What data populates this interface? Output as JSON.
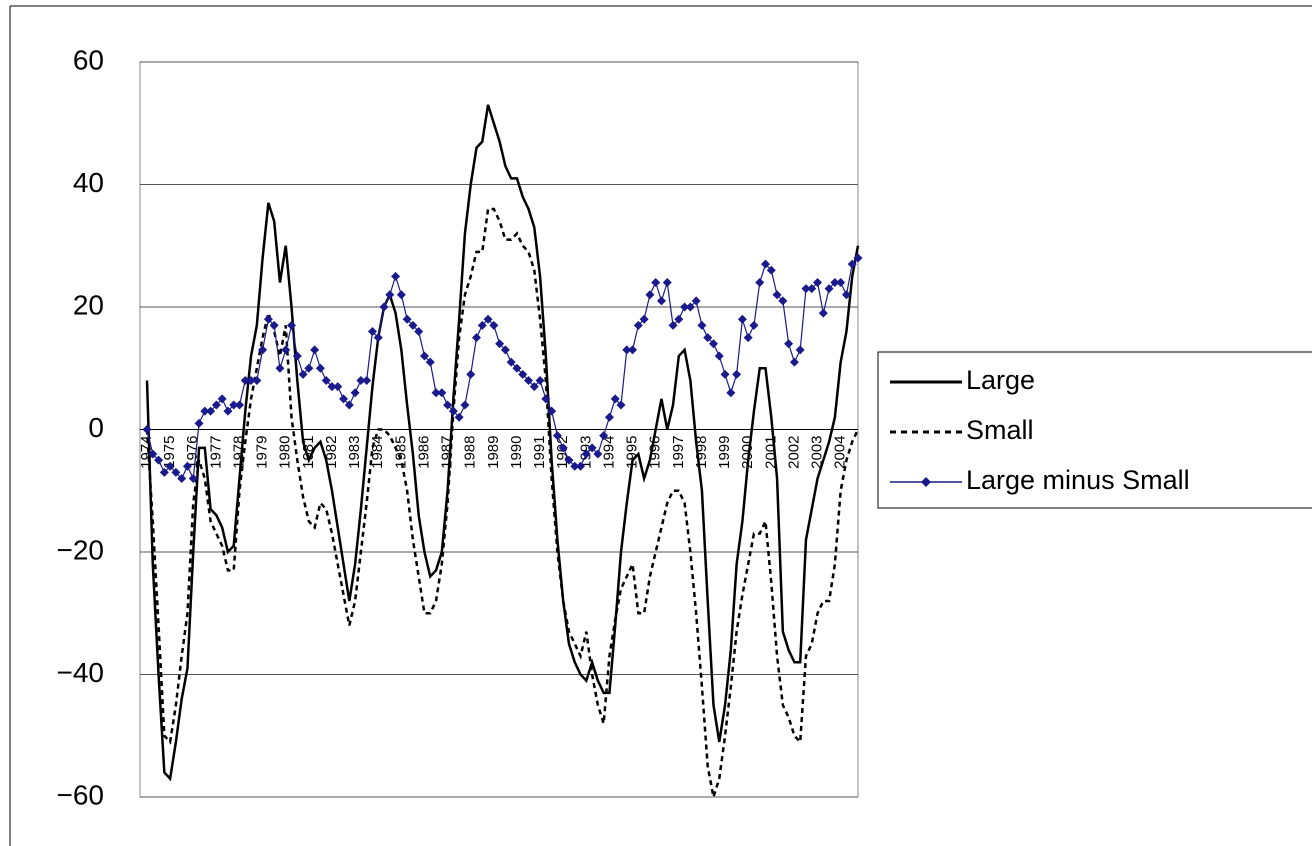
{
  "chart_data": {
    "type": "line",
    "categories": [
      "1974",
      null,
      null,
      null,
      "1975",
      null,
      null,
      null,
      "1976",
      null,
      null,
      null,
      "1977",
      null,
      null,
      null,
      "1978",
      null,
      null,
      null,
      "1979",
      null,
      null,
      null,
      "1980",
      null,
      null,
      null,
      "1981",
      null,
      null,
      null,
      "1982",
      null,
      null,
      null,
      "1983",
      null,
      null,
      null,
      "1984",
      null,
      null,
      null,
      "1985",
      null,
      null,
      null,
      "1986",
      null,
      null,
      null,
      "1987",
      null,
      null,
      null,
      "1988",
      null,
      null,
      null,
      "1989",
      null,
      null,
      null,
      "1990",
      null,
      null,
      null,
      "1991",
      null,
      null,
      null,
      "1992",
      null,
      null,
      null,
      "1993",
      null,
      null,
      null,
      "1994",
      null,
      null,
      null,
      "1995",
      null,
      null,
      null,
      "1996",
      null,
      null,
      null,
      "1997",
      null,
      null,
      null,
      "1998",
      null,
      null,
      null,
      "1999",
      null,
      null,
      null,
      "2000",
      null,
      null,
      null,
      "2001",
      null,
      null,
      null,
      "2002",
      null,
      null,
      null,
      "2003",
      null,
      null,
      null,
      "2004",
      null,
      null,
      null
    ],
    "series": [
      {
        "name": "Large",
        "color": "#000000",
        "line_style": "solid",
        "marker": "none",
        "values": [
          8,
          -22,
          -40,
          -56,
          -57,
          -51,
          -44,
          -39,
          -20,
          -3,
          -3,
          -13,
          -14,
          -16,
          -20,
          -19,
          -8,
          3,
          12,
          17,
          28,
          37,
          34,
          24,
          30,
          20,
          8,
          -2,
          -5,
          -3,
          -2,
          -5,
          -10,
          -16,
          -22,
          -28,
          -22,
          -13,
          -3,
          7,
          15,
          20,
          22,
          19,
          13,
          4,
          -4,
          -14,
          -20,
          -24,
          -23,
          -20,
          -10,
          5,
          18,
          32,
          40,
          46,
          47,
          53,
          50,
          47,
          43,
          41,
          41,
          38,
          36,
          33,
          25,
          12,
          -5,
          -18,
          -28,
          -35,
          -38,
          -40,
          -41,
          -38,
          -41,
          -43,
          -43,
          -32,
          -20,
          -12,
          -5,
          -4,
          -8,
          -5,
          0,
          5,
          0,
          4,
          12,
          13,
          8,
          -2,
          -10,
          -28,
          -45,
          -51,
          -45,
          -36,
          -22,
          -15,
          -5,
          3,
          10,
          10,
          2,
          -8,
          -33,
          -36,
          -38,
          -38,
          -18,
          -13,
          -8,
          -5,
          -2,
          2,
          11,
          16,
          25,
          30
        ]
      },
      {
        "name": "Small",
        "color": "#000000",
        "line_style": "dashed",
        "marker": "none",
        "values": [
          0,
          -15,
          -32,
          -50,
          -51,
          -45,
          -37,
          -30,
          -12,
          -5,
          -8,
          -15,
          -17,
          -19,
          -23,
          -23,
          -10,
          -2,
          5,
          10,
          15,
          19,
          16,
          12,
          17,
          2,
          -5,
          -11,
          -15,
          -16,
          -12,
          -13,
          -17,
          -22,
          -27,
          -32,
          -28,
          -20,
          -12,
          -3,
          0,
          0,
          -1,
          -3,
          -5,
          -10,
          -18,
          -24,
          -30,
          -30,
          -28,
          -22,
          -12,
          3,
          15,
          22,
          25,
          29,
          29,
          36,
          36,
          34,
          31,
          31,
          32,
          30,
          29,
          26,
          18,
          8,
          -8,
          -20,
          -28,
          -33,
          -35,
          -37,
          -33,
          -40,
          -45,
          -48,
          -37,
          -31,
          -26,
          -24,
          -22,
          -30,
          -30,
          -24,
          -20,
          -16,
          -12,
          -10,
          -10,
          -12,
          -20,
          -30,
          -42,
          -55,
          -60,
          -57,
          -50,
          -42,
          -33,
          -27,
          -22,
          -17,
          -17,
          -15,
          -25,
          -37,
          -45,
          -47,
          -50,
          -51,
          -37,
          -35,
          -30,
          -28,
          -28,
          -22,
          -10,
          -5,
          -2,
          0
        ]
      },
      {
        "name": "Large minus Small",
        "color": "#1a1a8c",
        "line_style": "solid",
        "marker": "diamond",
        "values": [
          0,
          -4,
          -5,
          -7,
          -6,
          -7,
          -8,
          -6,
          -8,
          1,
          3,
          3,
          4,
          5,
          3,
          4,
          4,
          8,
          8,
          8,
          13,
          18,
          17,
          10,
          13,
          17,
          12,
          9,
          10,
          13,
          10,
          8,
          7,
          7,
          5,
          4,
          6,
          8,
          8,
          16,
          15,
          20,
          22,
          25,
          22,
          18,
          17,
          16,
          12,
          11,
          6,
          6,
          4,
          3,
          2,
          4,
          9,
          15,
          17,
          18,
          17,
          14,
          13,
          11,
          10,
          9,
          8,
          7,
          8,
          5,
          3,
          -1,
          -3,
          -5,
          -6,
          -6,
          -4,
          -3,
          -4,
          -1,
          2,
          5,
          4,
          13,
          13,
          17,
          18,
          22,
          24,
          21,
          24,
          17,
          18,
          20,
          20,
          21,
          17,
          15,
          14,
          12,
          9,
          6,
          9,
          18,
          15,
          17,
          24,
          27,
          26,
          22,
          21,
          14,
          11,
          13,
          23,
          23,
          24,
          19,
          23,
          24,
          24,
          22,
          27,
          28
        ]
      }
    ],
    "ylim": [
      -60,
      60
    ],
    "yticks": [
      {
        "value": -60,
        "label": "−60"
      },
      {
        "value": -40,
        "label": "−40"
      },
      {
        "value": -20,
        "label": "−20"
      },
      0,
      20,
      40,
      60
    ],
    "grid": true,
    "legend": "right"
  }
}
